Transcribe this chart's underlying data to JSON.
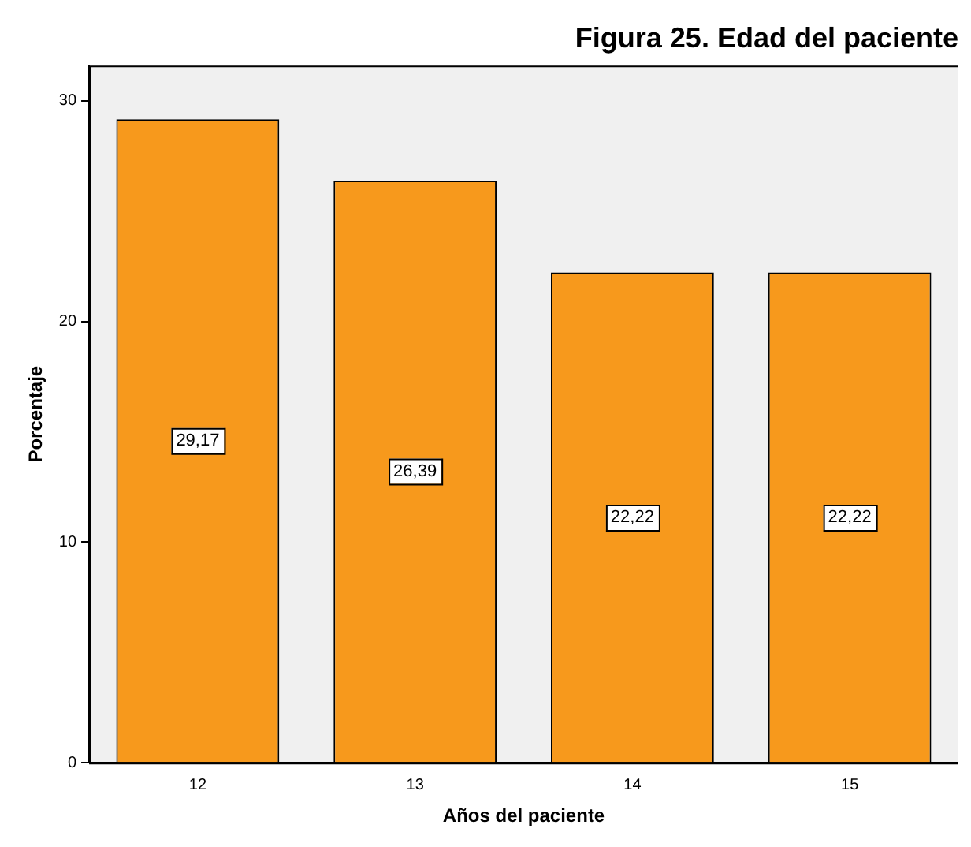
{
  "chart_data": {
    "type": "bar",
    "title": "Figura 25. Edad del paciente",
    "xlabel": "Años del paciente",
    "ylabel": "Porcentaje",
    "categories": [
      "12",
      "13",
      "14",
      "15"
    ],
    "values": [
      29.17,
      26.39,
      22.22,
      22.22
    ],
    "value_labels": [
      "29,17",
      "26,39",
      "22,22",
      "22,22"
    ],
    "color": "#f7991c",
    "ylim": [
      0,
      31.6
    ],
    "yticks": [
      0,
      10,
      20,
      30
    ],
    "grid": false,
    "legend": false
  }
}
